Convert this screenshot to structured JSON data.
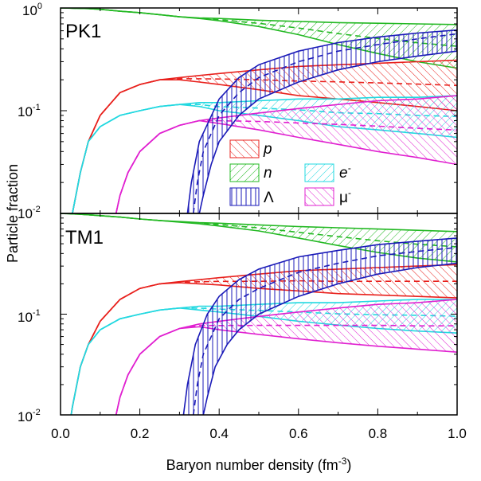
{
  "chart_data": {
    "type": "line",
    "xlabel": "Baryon number density (fm",
    "xlabel_sup": "-3",
    "xlabel_end": ")",
    "ylabel": "Particle fraction",
    "xlim": [
      0.0,
      1.0
    ],
    "ylim": [
      0.01,
      1.0
    ],
    "yscale": "log",
    "grid": false,
    "x_ticks": [
      "0.0",
      "0.2",
      "0.4",
      "0.6",
      "0.8",
      "1.0"
    ],
    "y_ticks": [
      {
        "base": "10",
        "exp": "0"
      },
      {
        "base": "10",
        "exp": "-1"
      },
      {
        "base": "10",
        "exp": "-2"
      }
    ],
    "legend": [
      {
        "symbol": "p",
        "italic": true,
        "color": "#e8201c",
        "hatch": "diag-right"
      },
      {
        "symbol": "n",
        "italic": true,
        "color": "#22b822",
        "hatch": "diag-left"
      },
      {
        "symbol": "e",
        "sup": "-",
        "italic": true,
        "color": "#22d8e0",
        "hatch": "diag-left"
      },
      {
        "symbol": "Λ",
        "italic": false,
        "color": "#1a1ab8",
        "hatch": "vertical"
      },
      {
        "symbol": "μ",
        "sup": "-",
        "italic": false,
        "color": "#e020d0",
        "hatch": "diag-right"
      }
    ],
    "panels": [
      {
        "label": "PK1",
        "x": [
          0.0,
          0.03,
          0.05,
          0.07,
          0.1,
          0.15,
          0.2,
          0.25,
          0.3,
          0.35,
          0.4,
          0.5,
          0.6,
          0.7,
          0.8,
          0.9,
          1.0
        ],
        "series": [
          {
            "key": "n",
            "upper": [
              1.0,
              0.995,
              0.99,
              0.985,
              0.97,
              0.93,
              0.9,
              0.86,
              0.82,
              0.8,
              0.79,
              0.76,
              0.74,
              0.72,
              0.71,
              0.7,
              0.69
            ],
            "lower": [
              1.0,
              0.995,
              0.99,
              0.985,
              0.97,
              0.93,
              0.9,
              0.86,
              0.82,
              0.79,
              0.75,
              0.66,
              0.55,
              0.44,
              0.36,
              0.3,
              0.26
            ]
          },
          {
            "key": "p",
            "upper": [
              0.0015,
              0.01,
              0.025,
              0.05,
              0.09,
              0.15,
              0.18,
              0.2,
              0.21,
              0.22,
              0.23,
              0.25,
              0.27,
              0.28,
              0.29,
              0.3,
              0.31
            ],
            "lower": [
              0.0015,
              0.01,
              0.025,
              0.05,
              0.09,
              0.15,
              0.18,
              0.2,
              0.2,
              0.19,
              0.18,
              0.16,
              0.14,
              0.13,
              0.12,
              0.11,
              0.1
            ]
          },
          {
            "key": "e",
            "upper": [
              0.0015,
              0.01,
              0.025,
              0.05,
              0.07,
              0.09,
              0.1,
              0.11,
              0.115,
              0.12,
              0.12,
              0.125,
              0.13,
              0.13,
              0.135,
              0.135,
              0.14
            ],
            "lower": [
              0.0015,
              0.01,
              0.025,
              0.05,
              0.07,
              0.09,
              0.1,
              0.11,
              0.115,
              0.11,
              0.1,
              0.09,
              0.08,
              0.07,
              0.065,
              0.06,
              0.055
            ]
          },
          {
            "key": "mu",
            "x": [
              0.14,
              0.15,
              0.17,
              0.2,
              0.25,
              0.3,
              0.35,
              0.4,
              0.5,
              0.6,
              0.7,
              0.8,
              0.9,
              1.0
            ],
            "upper": [
              0.01,
              0.015,
              0.025,
              0.04,
              0.06,
              0.072,
              0.08,
              0.085,
              0.095,
              0.105,
              0.115,
              0.125,
              0.13,
              0.14
            ],
            "lower": [
              0.01,
              0.015,
              0.025,
              0.04,
              0.06,
              0.072,
              0.08,
              0.075,
              0.065,
              0.055,
              0.047,
              0.04,
              0.035,
              0.03
            ]
          },
          {
            "key": "lambda",
            "x_upper": [
              0.32,
              0.33,
              0.35,
              0.4,
              0.45,
              0.5,
              0.6,
              0.7,
              0.8,
              0.9,
              1.0
            ],
            "upper": [
              0.01,
              0.02,
              0.05,
              0.13,
              0.21,
              0.28,
              0.38,
              0.46,
              0.52,
              0.57,
              0.61
            ],
            "x_lower": [
              0.35,
              0.36,
              0.38,
              0.4,
              0.45,
              0.5,
              0.6,
              0.7,
              0.8,
              0.9,
              1.0
            ],
            "lower": [
              0.01,
              0.015,
              0.03,
              0.05,
              0.09,
              0.13,
              0.19,
              0.25,
              0.3,
              0.34,
              0.38
            ],
            "x_mid": [
              0.335,
              0.345,
              0.36,
              0.4,
              0.45,
              0.5,
              0.6,
              0.7,
              0.8,
              0.9,
              1.0
            ],
            "mid": [
              0.01,
              0.02,
              0.04,
              0.09,
              0.15,
              0.21,
              0.3,
              0.38,
              0.44,
              0.5,
              0.56
            ]
          }
        ]
      },
      {
        "label": "TM1",
        "x": [
          0.0,
          0.03,
          0.05,
          0.07,
          0.1,
          0.15,
          0.2,
          0.25,
          0.3,
          0.35,
          0.4,
          0.5,
          0.6,
          0.7,
          0.8,
          0.9,
          1.0
        ],
        "series": [
          {
            "key": "n",
            "upper": [
              1.0,
              0.99,
              0.98,
              0.97,
              0.95,
              0.92,
              0.88,
              0.85,
              0.83,
              0.81,
              0.8,
              0.77,
              0.74,
              0.72,
              0.7,
              0.68,
              0.66
            ],
            "lower": [
              1.0,
              0.99,
              0.98,
              0.97,
              0.95,
              0.92,
              0.88,
              0.85,
              0.82,
              0.79,
              0.75,
              0.67,
              0.57,
              0.48,
              0.41,
              0.36,
              0.33
            ]
          },
          {
            "key": "p",
            "upper": [
              0.002,
              0.012,
              0.03,
              0.05,
              0.085,
              0.14,
              0.18,
              0.2,
              0.21,
              0.22,
              0.23,
              0.25,
              0.27,
              0.28,
              0.29,
              0.3,
              0.31
            ],
            "lower": [
              0.002,
              0.012,
              0.03,
              0.05,
              0.085,
              0.14,
              0.18,
              0.2,
              0.205,
              0.2,
              0.195,
              0.18,
              0.17,
              0.16,
              0.155,
              0.15,
              0.145
            ]
          },
          {
            "key": "e",
            "upper": [
              0.002,
              0.012,
              0.03,
              0.05,
              0.07,
              0.09,
              0.1,
              0.11,
              0.115,
              0.12,
              0.12,
              0.125,
              0.13,
              0.13,
              0.135,
              0.14,
              0.14
            ],
            "lower": [
              0.002,
              0.012,
              0.03,
              0.05,
              0.07,
              0.09,
              0.1,
              0.11,
              0.115,
              0.11,
              0.105,
              0.095,
              0.085,
              0.078,
              0.072,
              0.068,
              0.065
            ]
          },
          {
            "key": "mu",
            "x": [
              0.14,
              0.15,
              0.17,
              0.2,
              0.25,
              0.3,
              0.35,
              0.4,
              0.5,
              0.6,
              0.7,
              0.8,
              0.9,
              1.0
            ],
            "upper": [
              0.01,
              0.015,
              0.025,
              0.04,
              0.06,
              0.072,
              0.08,
              0.085,
              0.095,
              0.105,
              0.115,
              0.125,
              0.13,
              0.14
            ],
            "lower": [
              0.01,
              0.015,
              0.025,
              0.04,
              0.06,
              0.072,
              0.075,
              0.07,
              0.063,
              0.057,
              0.052,
              0.048,
              0.045,
              0.042
            ]
          },
          {
            "key": "lambda",
            "x_upper": [
              0.31,
              0.32,
              0.34,
              0.37,
              0.4,
              0.45,
              0.5,
              0.6,
              0.7,
              0.8,
              0.9,
              1.0
            ],
            "upper": [
              0.01,
              0.02,
              0.05,
              0.1,
              0.15,
              0.22,
              0.28,
              0.37,
              0.43,
              0.49,
              0.53,
              0.57
            ],
            "x_lower": [
              0.36,
              0.37,
              0.39,
              0.42,
              0.45,
              0.5,
              0.6,
              0.7,
              0.8,
              0.9,
              1.0
            ],
            "lower": [
              0.01,
              0.015,
              0.03,
              0.05,
              0.07,
              0.1,
              0.15,
              0.2,
              0.25,
              0.29,
              0.32
            ],
            "x_mid": [
              0.335,
              0.345,
              0.36,
              0.4,
              0.45,
              0.5,
              0.6,
              0.7,
              0.8,
              0.9,
              1.0
            ],
            "mid": [
              0.01,
              0.02,
              0.04,
              0.09,
              0.14,
              0.18,
              0.26,
              0.32,
              0.38,
              0.42,
              0.46
            ]
          }
        ]
      }
    ]
  }
}
